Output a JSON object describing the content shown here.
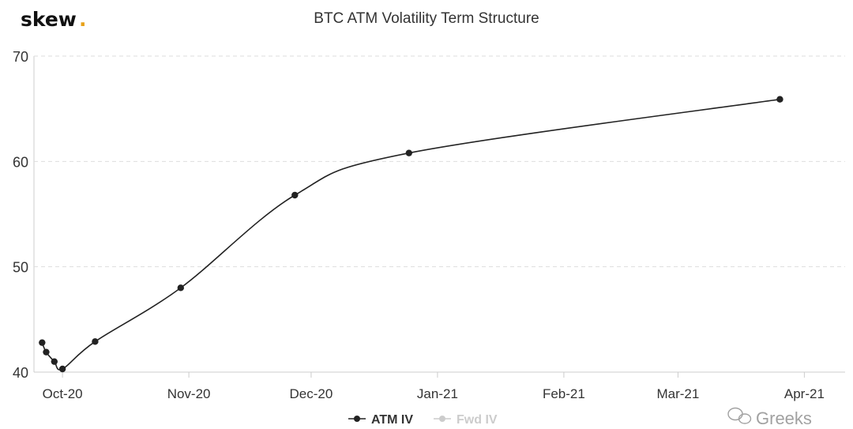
{
  "brand": {
    "name": "skew",
    "dot": ".",
    "accent_color": "#e8a21a"
  },
  "watermark": "Greeks",
  "colors": {
    "atm_series": "#222222",
    "fwd_series_inactive": "#cccccc",
    "grid": "#dddddd",
    "axis_text": "#333333"
  },
  "chart_data": {
    "type": "line",
    "title": "BTC ATM Volatility Term Structure",
    "xlabel": "",
    "ylabel": "",
    "x_type": "date",
    "xlim": [
      "2020-09-24",
      "2021-04-11"
    ],
    "ylim": [
      40,
      70
    ],
    "y_ticks": [
      40,
      50,
      60,
      70
    ],
    "x_ticks": [
      {
        "date": "2020-10-01",
        "label": "Oct-20"
      },
      {
        "date": "2020-11-01",
        "label": "Nov-20"
      },
      {
        "date": "2020-12-01",
        "label": "Dec-20"
      },
      {
        "date": "2021-01-01",
        "label": "Jan-21"
      },
      {
        "date": "2021-02-01",
        "label": "Feb-21"
      },
      {
        "date": "2021-03-01",
        "label": "Mar-21"
      },
      {
        "date": "2021-04-01",
        "label": "Apr-21"
      }
    ],
    "grid": "horizontal-dashed",
    "legend_position": "bottom-center",
    "series": [
      {
        "name": "ATM IV",
        "active": true,
        "points": [
          {
            "x": "2020-09-26",
            "y": 42.8
          },
          {
            "x": "2020-09-27",
            "y": 41.9
          },
          {
            "x": "2020-09-29",
            "y": 41.0
          },
          {
            "x": "2020-10-01",
            "y": 40.3
          },
          {
            "x": "2020-10-09",
            "y": 42.9
          },
          {
            "x": "2020-10-30",
            "y": 48.0
          },
          {
            "x": "2020-11-27",
            "y": 56.8
          },
          {
            "x": "2020-12-25",
            "y": 60.8
          },
          {
            "x": "2021-03-26",
            "y": 65.9
          }
        ]
      },
      {
        "name": "Fwd IV",
        "active": false,
        "points": []
      }
    ]
  }
}
